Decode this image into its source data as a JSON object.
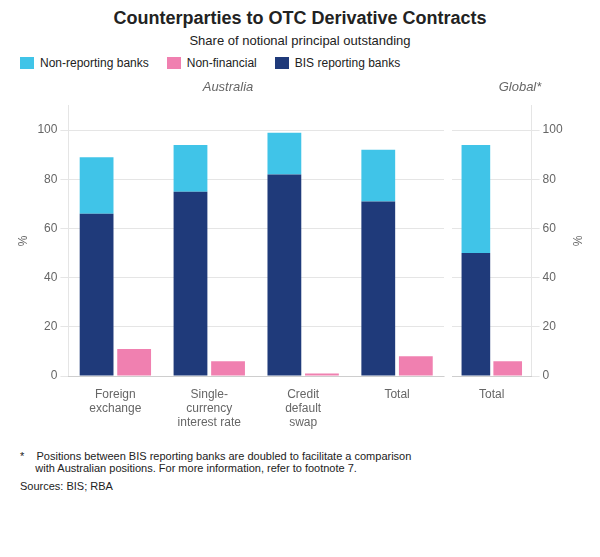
{
  "title": "Counterparties to OTC Derivative Contracts",
  "subtitle": "Share of notional principal outstanding",
  "footnote": "*    Positions between BIS reporting banks are doubled to facilitate a comparison\n     with Australian positions. For more information, refer to footnote 7.",
  "sources": "Sources: BIS; RBA",
  "chart_data": [
    {
      "type": "bar",
      "title": "Australia",
      "categories": [
        "Foreign\nexchange",
        "Single-\ncurrency\ninterest rate",
        "Credit\ndefault\nswap",
        "Total"
      ],
      "series": [
        {
          "name": "Non-reporting banks",
          "color": "#40c4e8",
          "values": [
            23,
            19,
            17,
            21
          ]
        },
        {
          "name": "Non-financial",
          "color": "#f080b0",
          "values": [
            11,
            6,
            1,
            8
          ],
          "stacked": false
        },
        {
          "name": "BIS reporting banks",
          "color": "#1f3a7a",
          "values": [
            66,
            75,
            82,
            71
          ]
        }
      ],
      "stacked": true,
      "ylabel": "%",
      "ylim": [
        0,
        110
      ],
      "yticks": [
        0,
        20,
        40,
        60,
        80,
        100
      ],
      "grid": true,
      "legend": "upper left"
    },
    {
      "type": "bar",
      "title": "Global*",
      "categories": [
        "Total"
      ],
      "series": [
        {
          "name": "Non-reporting banks",
          "color": "#40c4e8",
          "values": [
            44
          ]
        },
        {
          "name": "Non-financial",
          "color": "#f080b0",
          "values": [
            6
          ],
          "stacked": false
        },
        {
          "name": "BIS reporting banks",
          "color": "#1f3a7a",
          "values": [
            50
          ]
        }
      ],
      "stacked": true,
      "ylabel": "%",
      "ylim": [
        0,
        110
      ],
      "yticks": [
        0,
        20,
        40,
        60,
        80,
        100
      ],
      "grid": true
    }
  ]
}
